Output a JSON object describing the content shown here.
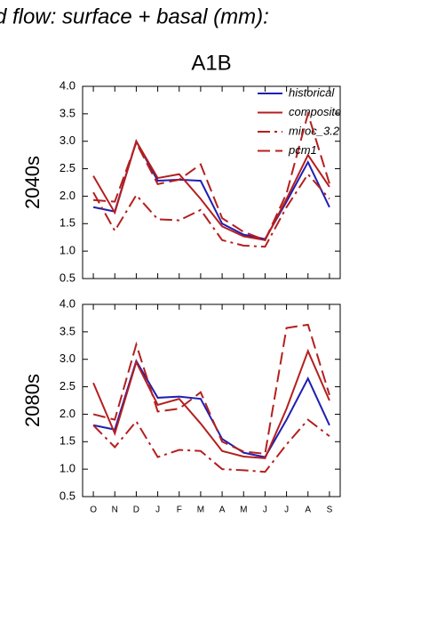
{
  "title": "d flow: surface + basal (mm):",
  "subtitle": "A1B",
  "chart_data": [
    {
      "type": "line",
      "ylabel": "2040s",
      "ylim": [
        0.5,
        4.0
      ],
      "yticks": [
        {
          "value": 0.5,
          "label": "0.5"
        },
        {
          "value": 1.0,
          "label": "1.0"
        },
        {
          "value": 1.5,
          "label": "1.5"
        },
        {
          "value": 2.0,
          "label": "2.0"
        },
        {
          "value": 2.5,
          "label": "2.5"
        },
        {
          "value": 3.0,
          "label": "3.0"
        },
        {
          "value": 3.5,
          "label": "3.5"
        },
        {
          "value": 4.0,
          "label": "4.0"
        }
      ],
      "legend": "upper right",
      "series": [
        {
          "name": "historical",
          "color": "#1f1fb4",
          "dash": "solid",
          "values": [
            1.8,
            1.72,
            3.0,
            2.28,
            2.3,
            2.28,
            1.5,
            1.3,
            1.22,
            1.9,
            2.62,
            1.8
          ]
        },
        {
          "name": "composite",
          "color": "#b41f1f",
          "dash": "solid",
          "values": [
            2.37,
            1.7,
            3.0,
            2.33,
            2.4,
            1.95,
            1.45,
            1.27,
            1.2,
            1.95,
            2.75,
            2.17
          ]
        },
        {
          "name": "miroc_3.2",
          "color": "#b41f1f",
          "dash": "dash-dot",
          "values": [
            2.07,
            1.37,
            2.02,
            1.58,
            1.56,
            1.75,
            1.2,
            1.1,
            1.08,
            1.8,
            2.4,
            1.95
          ]
        },
        {
          "name": "pcm1",
          "color": "#b41f1f",
          "dash": "dash",
          "values": [
            1.93,
            1.9,
            2.97,
            2.22,
            2.3,
            2.58,
            1.6,
            1.35,
            1.2,
            2.05,
            3.5,
            2.23
          ]
        }
      ]
    },
    {
      "type": "line",
      "ylabel": "2080s",
      "ylim": [
        0.5,
        4.0
      ],
      "yticks": [
        {
          "value": 0.5,
          "label": "0.5"
        },
        {
          "value": 1.0,
          "label": "1.0"
        },
        {
          "value": 1.5,
          "label": "1.5"
        },
        {
          "value": 2.0,
          "label": "2.0"
        },
        {
          "value": 2.5,
          "label": "2.5"
        },
        {
          "value": 3.0,
          "label": "3.0"
        },
        {
          "value": 3.5,
          "label": "3.5"
        },
        {
          "value": 4.0,
          "label": "4.0"
        }
      ],
      "categories": [
        "O",
        "N",
        "D",
        "J",
        "F",
        "M",
        "A",
        "M",
        "J",
        "J",
        "A",
        "S"
      ],
      "series": [
        {
          "color": "#1f1fb4",
          "dash": "solid",
          "values": [
            1.8,
            1.72,
            2.97,
            2.3,
            2.32,
            2.28,
            1.55,
            1.3,
            1.22,
            1.9,
            2.65,
            1.8
          ]
        },
        {
          "color": "#b41f1f",
          "dash": "solid",
          "values": [
            2.57,
            1.65,
            2.95,
            2.17,
            2.28,
            1.83,
            1.33,
            1.23,
            1.2,
            2.1,
            3.15,
            2.25
          ]
        },
        {
          "color": "#b41f1f",
          "dash": "dash-dot",
          "values": [
            1.8,
            1.4,
            1.87,
            1.22,
            1.35,
            1.33,
            1.0,
            0.98,
            0.95,
            1.45,
            1.9,
            1.6
          ]
        },
        {
          "color": "#b41f1f",
          "dash": "dash",
          "values": [
            2.0,
            1.9,
            3.27,
            2.05,
            2.1,
            2.4,
            1.5,
            1.32,
            1.28,
            3.57,
            3.63,
            2.35
          ]
        }
      ]
    }
  ]
}
